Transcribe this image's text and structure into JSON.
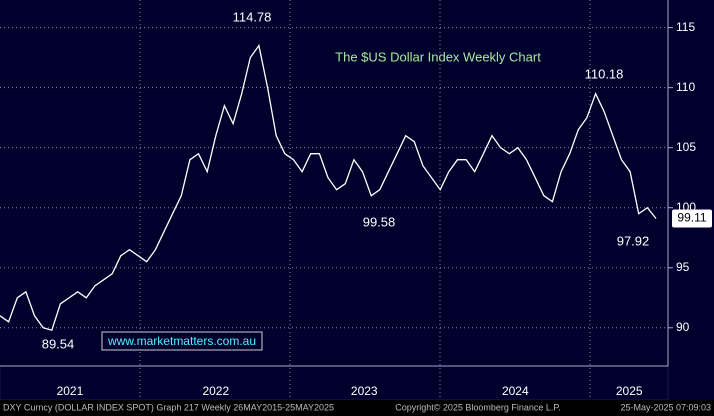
{
  "chart_data": {
    "type": "line",
    "title": "The $US Dollar Index Weekly Chart",
    "series": [
      {
        "name": "DXY",
        "color": "#ffffff",
        "values": [
          91,
          90.5,
          92.5,
          93,
          91,
          90,
          89.8,
          92,
          92.5,
          93,
          92.5,
          93.5,
          94,
          94.5,
          96,
          96.5,
          96,
          95.5,
          96.5,
          98,
          99.5,
          101,
          104,
          104.5,
          103,
          106,
          108.5,
          107,
          109.5,
          112.5,
          113.5,
          110,
          106,
          104.5,
          104,
          103,
          104.5,
          104.5,
          102.5,
          101.5,
          102,
          104,
          103,
          101,
          101.5,
          103,
          104.5,
          106,
          105.5,
          103.5,
          102.5,
          101.5,
          103,
          104,
          104,
          103,
          104.5,
          106,
          105,
          104.5,
          105,
          104,
          102.5,
          101,
          100.5,
          103,
          104.5,
          106.5,
          107.5,
          109.5,
          108,
          106,
          104,
          103,
          99.5,
          100,
          99.1
        ]
      }
    ],
    "xlim": [
      0,
      76
    ],
    "xticks": [
      {
        "value": 8.1,
        "label": "2021"
      },
      {
        "value": 25,
        "label": "2022"
      },
      {
        "value": 42.2,
        "label": "2023"
      },
      {
        "value": 59.7,
        "label": "2024"
      },
      {
        "value": 72.9,
        "label": "2025"
      }
    ],
    "ylim": [
      86.9,
      117.3
    ],
    "yticks": [
      90,
      95,
      100,
      105,
      110,
      115
    ],
    "grid": true,
    "last_price": "99.11",
    "annotations": [
      "114.78",
      "110.18",
      "99.58",
      "97.92",
      "89.54"
    ],
    "watermark": "www.marketmatters.com.au",
    "footer_left": "DXY Curncy (DOLLAR INDEX SPOT) Graph 217  Weekly 26MAY2015-25MAY2025",
    "footer_center": "Copyright© 2025 Bloomberg Finance L.P.",
    "footer_right": "25-May-2025 07:09:03"
  }
}
